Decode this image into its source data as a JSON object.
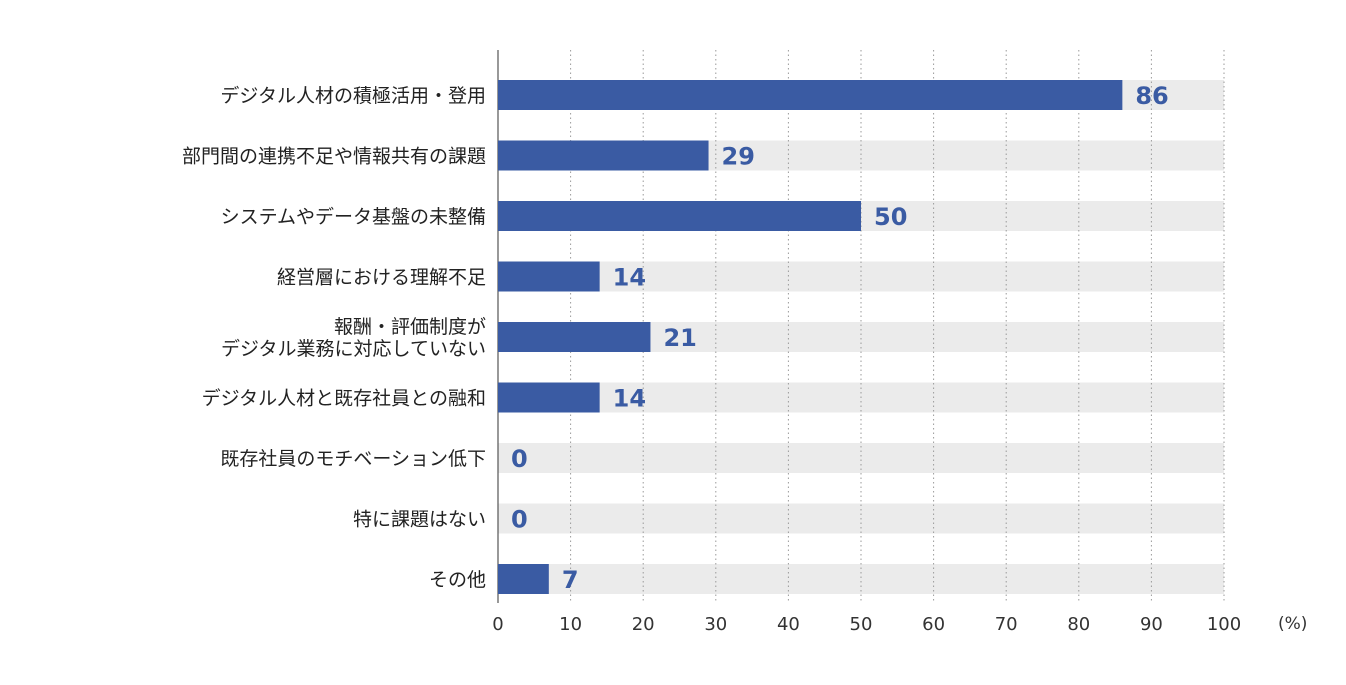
{
  "chart_data": {
    "type": "bar",
    "orientation": "horizontal",
    "categories": [
      [
        "デジタル人材の積極活用・登用"
      ],
      [
        "部門間の連携不足や情報共有の課題"
      ],
      [
        "システムやデータ基盤の未整備"
      ],
      [
        "経営層における理解不足"
      ],
      [
        "報酬・評価制度が",
        "デジタル業務に対応していない"
      ],
      [
        "デジタル人材と既存社員との融和"
      ],
      [
        "既存社員のモチベーション低下"
      ],
      [
        "特に課題はない"
      ],
      [
        "その他"
      ]
    ],
    "values": [
      86,
      29,
      50,
      14,
      21,
      14,
      0,
      0,
      7
    ],
    "xlim": [
      0,
      100
    ],
    "xticks": [
      "0",
      "10",
      "20",
      "30",
      "40",
      "50",
      "60",
      "70",
      "80",
      "90",
      "100"
    ],
    "unit": "(%)",
    "grid": "vertical dotted",
    "colors": {
      "bar": "#3a5ba3",
      "track": "#ebebeb",
      "value_text": "#3a5ba3"
    }
  }
}
